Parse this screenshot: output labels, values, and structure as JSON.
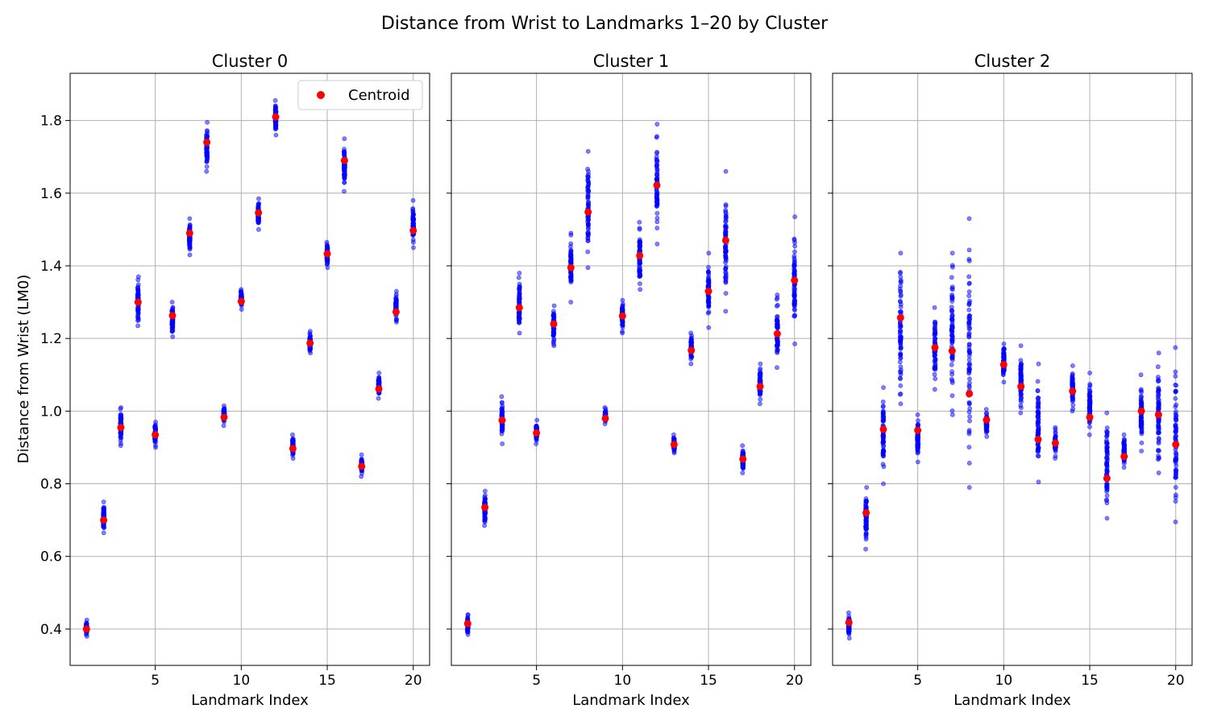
{
  "figure": {
    "title": "Distance from Wrist to Landmarks 1–20 by Cluster",
    "xlabel": "Landmark Index",
    "ylabel": "Distance from Wrist (LM0)"
  },
  "chart_data": [
    {
      "type": "scatter",
      "title": "Cluster 0",
      "xlabel": "Landmark Index",
      "ylabel": "Distance from Wrist (LM0)",
      "xlim": [
        0.05,
        20.95
      ],
      "ylim": [
        0.3,
        1.93
      ],
      "xticks": [
        5,
        10,
        15,
        20
      ],
      "yticks": [
        0.4,
        0.6,
        0.8,
        1.0,
        1.2,
        1.4,
        1.6,
        1.8
      ],
      "grid": true,
      "legend": {
        "position": "top-right",
        "entries": [
          "Centroid"
        ]
      },
      "series": [
        {
          "name": "Centroid",
          "color": "#ff0000",
          "x": [
            1,
            2,
            3,
            4,
            5,
            6,
            7,
            8,
            9,
            10,
            11,
            12,
            13,
            14,
            15,
            16,
            17,
            18,
            19,
            20
          ],
          "y": [
            0.4,
            0.7,
            0.955,
            1.3,
            0.935,
            1.263,
            1.49,
            1.74,
            0.983,
            1.302,
            1.546,
            1.81,
            0.897,
            1.187,
            1.433,
            1.69,
            0.848,
            1.061,
            1.273,
            1.497
          ]
        }
      ],
      "samples": {
        "color": "#0000ff",
        "x": [
          1,
          2,
          3,
          4,
          5,
          6,
          7,
          8,
          9,
          10,
          11,
          12,
          13,
          14,
          15,
          16,
          17,
          18,
          19,
          20
        ],
        "min": [
          0.38,
          0.665,
          0.905,
          1.235,
          0.9,
          1.205,
          1.43,
          1.66,
          0.96,
          1.28,
          1.5,
          1.76,
          0.87,
          1.16,
          1.395,
          1.605,
          0.82,
          1.035,
          1.245,
          1.45
        ],
        "max": [
          0.425,
          0.75,
          1.01,
          1.37,
          0.97,
          1.3,
          1.53,
          1.795,
          1.015,
          1.335,
          1.585,
          1.855,
          0.935,
          1.22,
          1.465,
          1.75,
          0.88,
          1.105,
          1.33,
          1.58
        ]
      }
    },
    {
      "type": "scatter",
      "title": "Cluster 1",
      "xlabel": "Landmark Index",
      "ylabel": "",
      "xlim": [
        0.05,
        20.95
      ],
      "ylim": [
        0.3,
        1.93
      ],
      "xticks": [
        5,
        10,
        15,
        20
      ],
      "yticks": [
        0.4,
        0.6,
        0.8,
        1.0,
        1.2,
        1.4,
        1.6,
        1.8
      ],
      "grid": true,
      "series": [
        {
          "name": "Centroid",
          "color": "#ff0000",
          "x": [
            1,
            2,
            3,
            4,
            5,
            6,
            7,
            8,
            9,
            10,
            11,
            12,
            13,
            14,
            15,
            16,
            17,
            18,
            19,
            20
          ],
          "y": [
            0.415,
            0.735,
            0.975,
            1.285,
            0.94,
            1.24,
            1.395,
            1.548,
            0.98,
            1.262,
            1.428,
            1.622,
            0.908,
            1.167,
            1.33,
            1.47,
            0.868,
            1.068,
            1.213,
            1.36
          ]
        }
      ],
      "samples": {
        "color": "#0000ff",
        "x": [
          1,
          2,
          3,
          4,
          5,
          6,
          7,
          8,
          9,
          10,
          11,
          12,
          13,
          14,
          15,
          16,
          17,
          18,
          19,
          20
        ],
        "min": [
          0.385,
          0.685,
          0.91,
          1.215,
          0.91,
          1.18,
          1.3,
          1.395,
          0.965,
          1.215,
          1.335,
          1.46,
          0.885,
          1.13,
          1.23,
          1.275,
          0.83,
          1.02,
          1.12,
          1.185
        ],
        "max": [
          0.44,
          0.78,
          1.04,
          1.38,
          0.975,
          1.29,
          1.49,
          1.715,
          1.01,
          1.305,
          1.52,
          1.79,
          0.935,
          1.215,
          1.435,
          1.66,
          0.905,
          1.13,
          1.32,
          1.535
        ]
      }
    },
    {
      "type": "scatter",
      "title": "Cluster 2",
      "xlabel": "Landmark Index",
      "ylabel": "",
      "xlim": [
        0.05,
        20.95
      ],
      "ylim": [
        0.3,
        1.93
      ],
      "xticks": [
        5,
        10,
        15,
        20
      ],
      "yticks": [
        0.4,
        0.6,
        0.8,
        1.0,
        1.2,
        1.4,
        1.6,
        1.8
      ],
      "grid": true,
      "series": [
        {
          "name": "Centroid",
          "color": "#ff0000",
          "x": [
            1,
            2,
            3,
            4,
            5,
            6,
            7,
            8,
            9,
            10,
            11,
            12,
            13,
            14,
            15,
            16,
            17,
            18,
            19,
            20
          ],
          "y": [
            0.418,
            0.72,
            0.95,
            1.257,
            0.947,
            1.175,
            1.166,
            1.048,
            0.976,
            1.128,
            1.068,
            0.922,
            0.912,
            1.055,
            0.983,
            0.815,
            0.875,
            1.0,
            0.99,
            0.908
          ]
        }
      ],
      "samples": {
        "color": "#0000ff",
        "x": [
          1,
          2,
          3,
          4,
          5,
          6,
          7,
          8,
          9,
          10,
          11,
          12,
          13,
          14,
          15,
          16,
          17,
          18,
          19,
          20
        ],
        "min": [
          0.375,
          0.62,
          0.8,
          1.02,
          0.86,
          1.06,
          0.99,
          0.79,
          0.93,
          1.08,
          0.995,
          0.805,
          0.87,
          1.0,
          0.935,
          0.705,
          0.845,
          0.89,
          0.83,
          0.695
        ],
        "max": [
          0.445,
          0.79,
          1.065,
          1.435,
          0.99,
          1.285,
          1.435,
          1.53,
          1.005,
          1.185,
          1.18,
          1.13,
          0.955,
          1.125,
          1.105,
          0.995,
          0.935,
          1.1,
          1.16,
          1.175
        ]
      }
    }
  ]
}
